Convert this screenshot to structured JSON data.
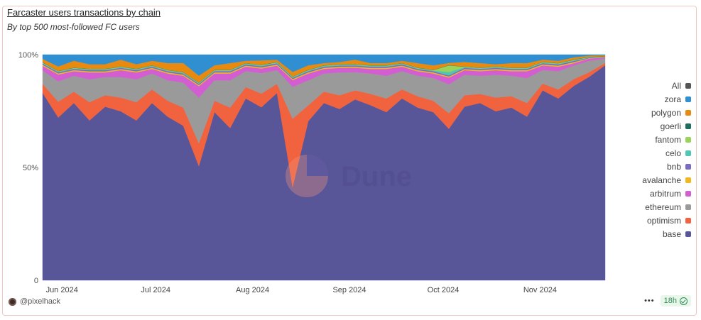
{
  "header": {
    "title": "Farcaster users transactions by chain",
    "subtitle": "By top 500 most-followed FC users"
  },
  "footer": {
    "author": "@pixelhack",
    "more_label": "•••",
    "refresh_badge": "18h"
  },
  "watermark": "Dune",
  "colors": {
    "base": "#585599",
    "optimism": "#f1623e",
    "ethereum": "#9a9a9a",
    "arbitrum": "#d35ed1",
    "avalanche": "#f0b71e",
    "bnb": "#7b6bc2",
    "celo": "#4fc7b3",
    "fantom": "#9ad25a",
    "goerli": "#1e6d5e",
    "polygon": "#e88a10",
    "zora": "#2f8fd0",
    "All": "#555555"
  },
  "chart_data": {
    "type": "area",
    "stacked": "percent",
    "title": "Farcaster users transactions by chain",
    "y_ticks": [
      "0",
      "50%",
      "100%"
    ],
    "ylim": [
      0,
      100
    ],
    "x_tick_labels": [
      "Jun 2024",
      "Jul 2024",
      "Aug 2024",
      "Sep 2024",
      "Oct 2024",
      "Nov 2024"
    ],
    "legend": [
      "All",
      "zora",
      "polygon",
      "goerli",
      "fantom",
      "celo",
      "bnb",
      "avalanche",
      "arbitrum",
      "ethereum",
      "optimism",
      "base"
    ],
    "legend_position": "right",
    "grid": false,
    "x": [
      "2024-05-29",
      "2024-06-03",
      "2024-06-08",
      "2024-06-13",
      "2024-06-18",
      "2024-06-23",
      "2024-06-28",
      "2024-07-03",
      "2024-07-08",
      "2024-07-13",
      "2024-07-18",
      "2024-07-23",
      "2024-07-28",
      "2024-08-02",
      "2024-08-07",
      "2024-08-12",
      "2024-08-17",
      "2024-08-22",
      "2024-08-27",
      "2024-09-01",
      "2024-09-06",
      "2024-09-11",
      "2024-09-16",
      "2024-09-21",
      "2024-09-26",
      "2024-10-01",
      "2024-10-06",
      "2024-10-11",
      "2024-10-16",
      "2024-10-21",
      "2024-10-26",
      "2024-10-31",
      "2024-11-05",
      "2024-11-10",
      "2024-11-15",
      "2024-11-20",
      "2024-11-25"
    ],
    "series": [
      {
        "name": "base",
        "values": [
          83,
          72,
          78,
          70,
          76,
          74,
          70,
          78,
          72,
          68,
          50,
          74,
          67,
          80,
          76,
          82,
          41,
          70,
          78,
          75,
          80,
          77,
          74,
          80,
          76,
          74,
          68,
          76,
          78,
          74,
          76,
          72,
          84,
          80,
          86,
          90,
          95
        ]
      },
      {
        "name": "optimism",
        "values": [
          4,
          7,
          5,
          8,
          5,
          6,
          8,
          6,
          7,
          8,
          10,
          5,
          9,
          5,
          6,
          4,
          30,
          7,
          5,
          6,
          4,
          5,
          6,
          4,
          5,
          5,
          7,
          5,
          4,
          6,
          5,
          6,
          3,
          4,
          3,
          2,
          1
        ]
      },
      {
        "name": "ethereum",
        "values": [
          6,
          9,
          7,
          10,
          8,
          9,
          10,
          7,
          9,
          11,
          20,
          9,
          12,
          7,
          9,
          6,
          14,
          11,
          8,
          10,
          8,
          9,
          10,
          8,
          9,
          10,
          13,
          9,
          8,
          10,
          9,
          11,
          6,
          8,
          6,
          5,
          2
        ]
      },
      {
        "name": "arbitrum",
        "values": [
          2,
          3,
          2,
          3,
          2,
          3,
          3,
          2,
          3,
          3,
          5,
          3,
          3,
          2,
          2,
          2,
          3,
          3,
          2,
          2,
          2,
          2,
          3,
          2,
          2,
          2,
          3,
          2,
          2,
          2,
          2,
          3,
          2,
          2,
          1,
          1,
          0.5
        ]
      },
      {
        "name": "avalanche",
        "values": [
          0.5,
          0.5,
          0.5,
          0.5,
          0.5,
          0.5,
          0.5,
          0.5,
          0.5,
          0.5,
          0.5,
          0.5,
          0.5,
          0.5,
          0.5,
          0.5,
          0.5,
          0.5,
          0.5,
          0.5,
          0.5,
          0.5,
          0.5,
          0.5,
          0.5,
          0.5,
          0.5,
          0.5,
          0.5,
          0.5,
          0.5,
          0.5,
          0.5,
          0.5,
          0.5,
          0.2,
          0.1
        ]
      },
      {
        "name": "bnb",
        "values": [
          0.5,
          0.5,
          0.5,
          0.5,
          0.5,
          0.5,
          0.5,
          0.5,
          0.5,
          0.5,
          0.5,
          0.5,
          0.5,
          0.5,
          0.5,
          0.5,
          0.5,
          0.5,
          0.5,
          0.5,
          0.5,
          0.5,
          0.5,
          0.5,
          0.5,
          0.5,
          0.5,
          0.5,
          0.5,
          0.5,
          0.5,
          0.5,
          0.5,
          0.5,
          0.5,
          0.2,
          0.1
        ]
      },
      {
        "name": "celo",
        "values": [
          0.3,
          0.3,
          0.3,
          0.3,
          0.3,
          0.3,
          0.3,
          0.3,
          0.3,
          0.3,
          0.3,
          0.3,
          0.3,
          0.3,
          0.3,
          0.3,
          0.3,
          0.3,
          0.3,
          0.3,
          0.3,
          0.3,
          0.3,
          0.3,
          0.3,
          0.3,
          1.5,
          0.3,
          0.3,
          0.3,
          0.3,
          0.3,
          0.3,
          0.3,
          0.3,
          0.2,
          0.1
        ]
      },
      {
        "name": "fantom",
        "values": [
          0.2,
          0.2,
          0.2,
          0.2,
          0.2,
          0.2,
          0.2,
          0.2,
          0.2,
          0.2,
          0.2,
          0.2,
          0.2,
          0.2,
          0.2,
          0.2,
          0.2,
          0.2,
          0.2,
          0.2,
          0.2,
          0.2,
          0.2,
          0.2,
          0.2,
          0.2,
          3,
          0.2,
          0.2,
          0.2,
          0.2,
          0.2,
          0.2,
          0.2,
          0.2,
          0.1,
          0.1
        ]
      },
      {
        "name": "goerli",
        "values": [
          0.1,
          0.1,
          0.1,
          0.1,
          0.1,
          0.1,
          0.1,
          0.1,
          0.1,
          0.1,
          0.1,
          0.1,
          0.1,
          0.1,
          0.1,
          0.1,
          0.1,
          0.1,
          0.1,
          0.1,
          0.1,
          0.1,
          0.1,
          0.1,
          0.1,
          0.1,
          0.1,
          0.1,
          0.1,
          0.1,
          0.1,
          0.1,
          0.1,
          0.1,
          0.1,
          0.1,
          0.1
        ]
      },
      {
        "name": "polygon",
        "values": [
          1.5,
          2,
          3,
          2,
          2,
          3,
          2,
          2,
          3,
          4,
          3,
          2,
          3,
          1,
          2,
          1,
          2,
          2,
          1,
          1,
          2,
          1,
          1,
          1,
          2,
          2,
          1,
          2,
          2,
          1,
          2,
          2,
          1,
          1,
          1,
          0.5,
          0.5
        ]
      },
      {
        "name": "zora",
        "values": [
          1.9,
          5.2,
          2.7,
          4.2,
          4.2,
          2.2,
          4.2,
          2.7,
          3.7,
          3.7,
          9.2,
          4.7,
          3.7,
          2.7,
          2.5,
          2.2,
          7.6,
          4.7,
          3.7,
          3.2,
          2.2,
          3.7,
          3.7,
          2.7,
          3.7,
          4.7,
          3.7,
          3.2,
          3.7,
          4.2,
          3.7,
          3.7,
          2.2,
          2.7,
          1.2,
          0.4,
          0.2
        ]
      }
    ]
  }
}
